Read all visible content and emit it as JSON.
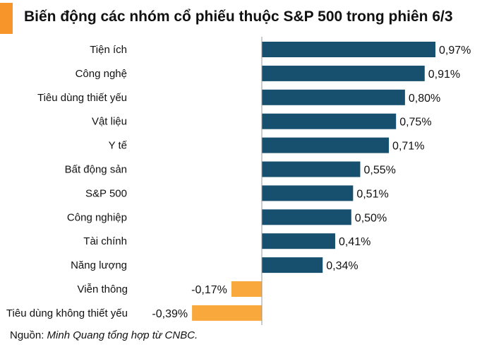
{
  "title": "Biến động các nhóm cổ phiếu thuộc S&P 500 trong phiên 6/3",
  "source_label": "Nguồn: ",
  "source_text": "Minh Quang tổng hợp từ CNBC.",
  "colors": {
    "accent": "#F7942A",
    "positive": "#17506E",
    "negative": "#F9A83B",
    "axis": "#9A9A9A"
  },
  "chart_data": {
    "type": "bar",
    "orientation": "horizontal",
    "title": "Biến động các nhóm cổ phiếu thuộc S&P 500 trong phiên 6/3",
    "unit": "%",
    "categories": [
      "Tiện ích",
      "Công nghệ",
      "Tiêu dùng thiết yếu",
      "Vật liệu",
      "Y tế",
      "Bất động sản",
      "S&P 500",
      "Công nghiệp",
      "Tài chính",
      "Năng lượng",
      "Viễn thông",
      "Tiêu dùng không thiết yếu"
    ],
    "values": [
      0.97,
      0.91,
      0.8,
      0.75,
      0.71,
      0.55,
      0.51,
      0.5,
      0.41,
      0.34,
      -0.17,
      -0.39
    ],
    "value_labels": [
      "0,97%",
      "0,91%",
      "0,80%",
      "0,75%",
      "0,71%",
      "0,55%",
      "0,51%",
      "0,50%",
      "0,41%",
      "0,34%",
      "-0,17%",
      "-0,39%"
    ],
    "grid": false,
    "legend": "none"
  }
}
